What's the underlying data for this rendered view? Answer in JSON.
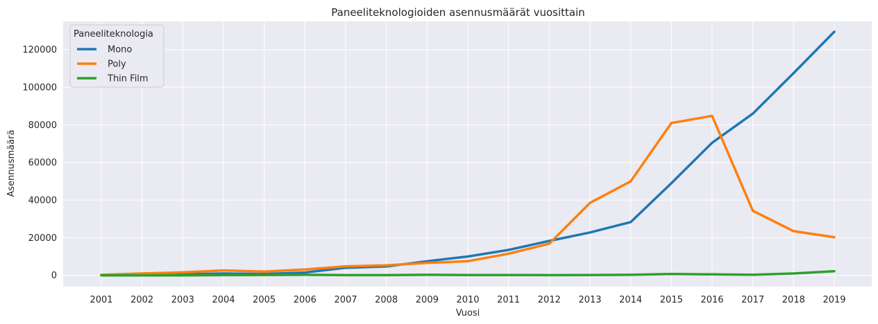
{
  "chart_data": {
    "type": "line",
    "title": "Paneeliteknologioiden asennusmäärät vuosittain",
    "xlabel": "Vuosi",
    "ylabel": "Asennusmäärä",
    "x": [
      "2001",
      "2002",
      "2003",
      "2004",
      "2005",
      "2006",
      "2007",
      "2008",
      "2009",
      "2010",
      "2011",
      "2012",
      "2013",
      "2014",
      "2015",
      "2016",
      "2017",
      "2018",
      "2019"
    ],
    "ylim": [
      -6000,
      135000
    ],
    "yticks": [
      0,
      20000,
      40000,
      60000,
      80000,
      100000,
      120000
    ],
    "grid": true,
    "legend": {
      "title": "Paneeliteknologia",
      "placement": "top-left"
    },
    "series": [
      {
        "name": "Mono",
        "color": "#1f77b4",
        "values": [
          100,
          300,
          500,
          1000,
          700,
          1500,
          4000,
          4700,
          7500,
          10000,
          13500,
          18300,
          22800,
          28300,
          49000,
          70500,
          86000,
          107500,
          129500
        ]
      },
      {
        "name": "Poly",
        "color": "#ff7f0e",
        "values": [
          300,
          1000,
          1600,
          2600,
          2000,
          3100,
          4800,
          5300,
          6600,
          7500,
          11500,
          16800,
          38500,
          50000,
          81000,
          84800,
          34300,
          23500,
          20300
        ]
      },
      {
        "name": "Thin Film",
        "color": "#2ca02c",
        "values": [
          0,
          0,
          0,
          100,
          200,
          300,
          100,
          100,
          300,
          200,
          200,
          100,
          200,
          300,
          700,
          500,
          300,
          1000,
          2200
        ]
      }
    ]
  }
}
